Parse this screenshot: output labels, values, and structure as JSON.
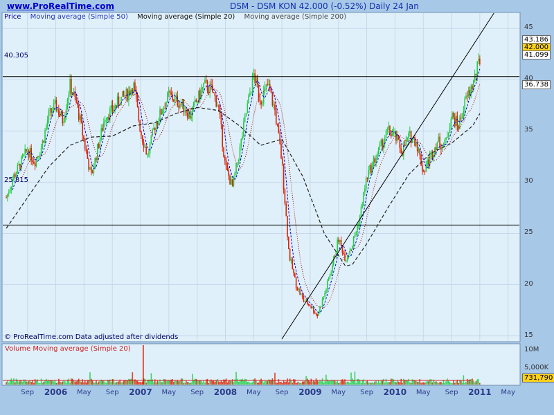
{
  "header": {
    "site": "www.ProRealTime.com",
    "title": "DSM - DSM KON    42.000 (-0.52%)    Daily  24 Jan"
  },
  "legend": {
    "price": "Price",
    "ma50": "Moving average (Simple 50)",
    "ma20": "Moving average (Simple 20)",
    "ma200": "Moving average (Simple 200)"
  },
  "footnote": "© ProRealTime.com  Data adjusted after dividends",
  "volume_legend": "Volume Moving average (Simple 20)",
  "colors": {
    "background": "#a8c8e8",
    "panel": "#e0f0fa",
    "up": "#22cc44",
    "down": "#dd2200",
    "ma20": "#0000cc",
    "ma50": "#990000",
    "ma200": "#222222",
    "badge_last": "#ffd21a"
  },
  "price_labels": {
    "high": "43.186",
    "last": "42.000",
    "low": "41.099",
    "ma200": "36.738",
    "hline_top": "40.305",
    "hline_bottom": "25.815"
  },
  "volume_labels": {
    "last": "731,790",
    "tick_10m": "10M",
    "tick_5m": "5,000K"
  },
  "chart_data": {
    "type": "candlestick",
    "y_ticks": [
      45,
      40,
      35,
      30,
      25,
      20,
      15
    ],
    "ylim": [
      14.5,
      46.5
    ],
    "x_ticks": [
      "Sep",
      "2006",
      "May",
      "Sep",
      "2007",
      "May",
      "Sep",
      "2008",
      "May",
      "Sep",
      "2009",
      "May",
      "Sep",
      "2010",
      "May",
      "Sep",
      "2011",
      "May"
    ],
    "horizontal_lines": [
      40.305,
      25.815
    ],
    "trendline": {
      "from": [
        "2008-09",
        14.7
      ],
      "to": [
        "2011-03",
        46.5
      ]
    },
    "series": [
      {
        "name": "Price",
        "months": [
          "2005-06",
          "2005-07",
          "2005-08",
          "2005-09",
          "2005-10",
          "2005-11",
          "2005-12",
          "2006-01",
          "2006-02",
          "2006-03",
          "2006-04",
          "2006-05",
          "2006-06",
          "2006-07",
          "2006-08",
          "2006-09",
          "2006-10",
          "2006-11",
          "2006-12",
          "2007-01",
          "2007-02",
          "2007-03",
          "2007-04",
          "2007-05",
          "2007-06",
          "2007-07",
          "2007-08",
          "2007-09",
          "2007-10",
          "2007-11",
          "2007-12",
          "2008-01",
          "2008-02",
          "2008-03",
          "2008-04",
          "2008-05",
          "2008-06",
          "2008-07",
          "2008-08",
          "2008-09",
          "2008-10",
          "2008-11",
          "2008-12",
          "2009-01",
          "2009-02",
          "2009-03",
          "2009-04",
          "2009-05",
          "2009-06",
          "2009-07",
          "2009-08",
          "2009-09",
          "2009-10",
          "2009-11",
          "2009-12",
          "2010-01",
          "2010-02",
          "2010-03",
          "2010-04",
          "2010-05",
          "2010-06",
          "2010-07",
          "2010-08",
          "2010-09",
          "2010-10",
          "2010-11",
          "2010-12",
          "2011-01"
        ],
        "values": [
          28.5,
          30.5,
          31.8,
          33.2,
          32.0,
          33.5,
          36.5,
          37.5,
          36.0,
          39.5,
          37.5,
          34.0,
          30.5,
          33.5,
          36.5,
          37.0,
          38.0,
          38.5,
          39.5,
          35.0,
          32.5,
          35.5,
          37.0,
          38.5,
          38.0,
          37.5,
          36.5,
          38.0,
          39.5,
          39.0,
          37.5,
          31.5,
          29.5,
          33.0,
          37.0,
          40.5,
          38.0,
          39.5,
          37.0,
          32.0,
          23.0,
          20.0,
          18.5,
          18.0,
          17.0,
          19.0,
          21.5,
          24.5,
          22.5,
          24.0,
          26.5,
          30.5,
          32.0,
          33.5,
          35.0,
          34.5,
          33.0,
          34.5,
          34.0,
          31.0,
          32.5,
          34.0,
          33.5,
          36.5,
          35.5,
          38.0,
          39.5,
          42.0
        ]
      },
      {
        "name": "Moving average (Simple 200)",
        "months": [
          "2005-06",
          "2005-09",
          "2005-12",
          "2006-03",
          "2006-06",
          "2006-09",
          "2006-12",
          "2007-03",
          "2007-06",
          "2007-09",
          "2007-12",
          "2008-03",
          "2008-06",
          "2008-09",
          "2008-12",
          "2009-03",
          "2009-06",
          "2009-07",
          "2009-09",
          "2009-12",
          "2010-03",
          "2010-06",
          "2010-09",
          "2010-12",
          "2011-01"
        ],
        "values": [
          25.5,
          28.5,
          31.5,
          33.6,
          34.4,
          34.5,
          35.5,
          35.8,
          36.7,
          37.3,
          37.0,
          35.5,
          33.6,
          34.2,
          30.5,
          25.0,
          21.8,
          22.0,
          24.0,
          27.5,
          30.8,
          32.8,
          33.8,
          35.5,
          36.7
        ]
      }
    ]
  }
}
